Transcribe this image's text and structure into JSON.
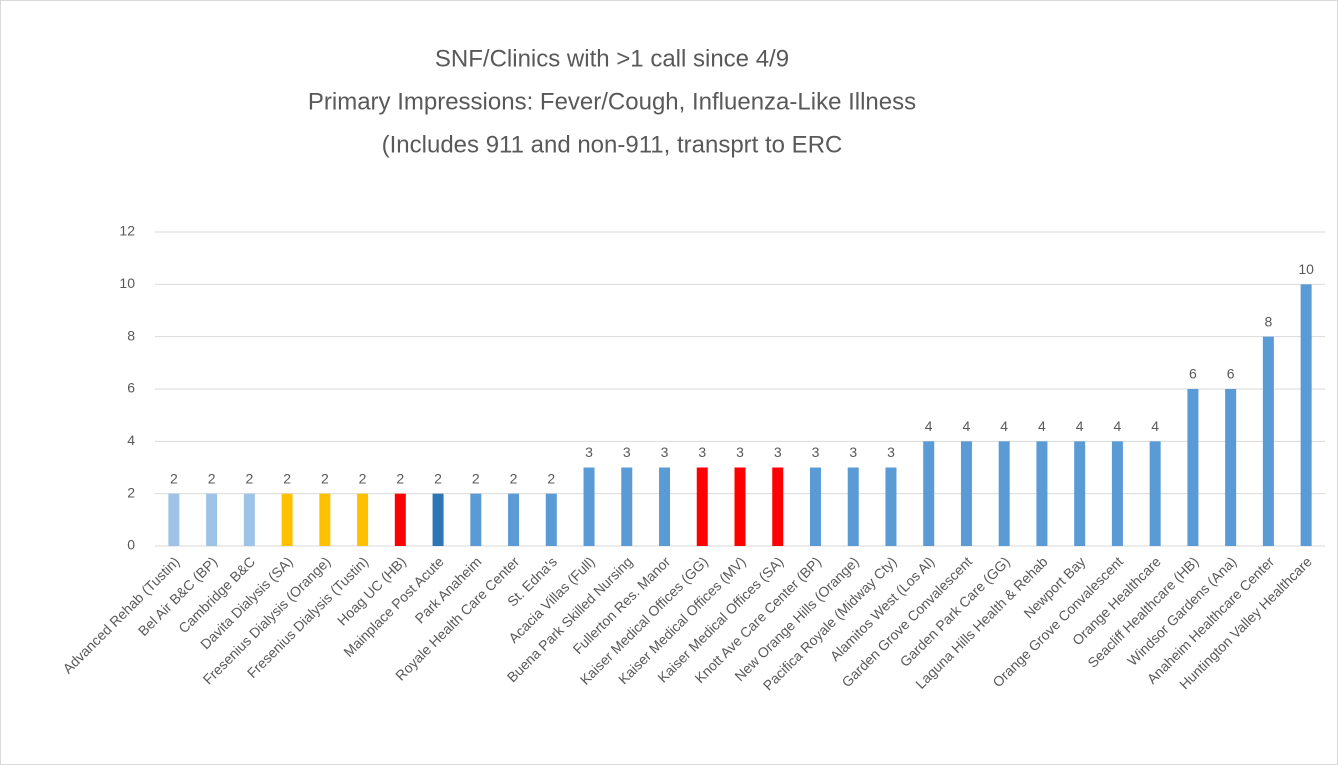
{
  "chart_data": {
    "type": "bar",
    "title": [
      "SNF/Clinics with >1 call since 4/9",
      "Primary Impressions:  Fever/Cough, Influenza-Like Illness",
      "(Includes 911 and non-911, transprt to ERC"
    ],
    "categories": [
      "Advanced Rehab (Tustin)",
      "Bel Air B&C (BP)",
      "Cambridge B&C",
      "Davita Dialysis (SA)",
      "Fresenius Dialysis (Orange)",
      "Fresenius Dialysis (Tustin)",
      "Hoag UC (HB)",
      "Mainplace Post Acute",
      "Park Anaheim",
      "Royale Health Care Center",
      "St. Edna's",
      "Acacia Villas (Full)",
      "Buena Park Skilled Nursing",
      "Fullerton Res. Manor",
      "Kaiser Medical Offices (GG)",
      "Kaiser Medical Offices (MV)",
      "Kaiser Medical Offices (SA)",
      "Knott Ave Care Center  (BP)",
      "New Orange Hills (Orange)",
      "Pacifica Royale (Midway Cty)",
      "Alamitos West (Los Al)",
      "Garden Grove Convalescent",
      "Garden Park Care (GG)",
      "Laguna Hills Health & Rehab",
      "Newport Bay",
      "Orange Grove Convalescent",
      "Orange Healthcare",
      "Seacliff Healthcare (HB)",
      "Windsor Gardens (Ana)",
      "Anaheim Healthcare Center",
      "Huntington Valley Healthcare"
    ],
    "values": [
      2,
      2,
      2,
      2,
      2,
      2,
      2,
      2,
      2,
      2,
      2,
      3,
      3,
      3,
      3,
      3,
      3,
      3,
      3,
      3,
      4,
      4,
      4,
      4,
      4,
      4,
      4,
      6,
      6,
      8,
      10
    ],
    "colors": [
      "#9dc3e6",
      "#9dc3e6",
      "#9dc3e6",
      "#ffc000",
      "#ffc000",
      "#ffc000",
      "#ff0000",
      "#2e75b6",
      "#5b9bd5",
      "#5b9bd5",
      "#5b9bd5",
      "#5b9bd5",
      "#5b9bd5",
      "#5b9bd5",
      "#ff0000",
      "#ff0000",
      "#ff0000",
      "#5b9bd5",
      "#5b9bd5",
      "#5b9bd5",
      "#5b9bd5",
      "#5b9bd5",
      "#5b9bd5",
      "#5b9bd5",
      "#5b9bd5",
      "#5b9bd5",
      "#5b9bd5",
      "#5b9bd5",
      "#5b9bd5",
      "#5b9bd5",
      "#5b9bd5"
    ],
    "ylim": [
      0,
      12
    ],
    "yticks": [
      0,
      2,
      4,
      6,
      8,
      10,
      12
    ],
    "grid": true
  }
}
